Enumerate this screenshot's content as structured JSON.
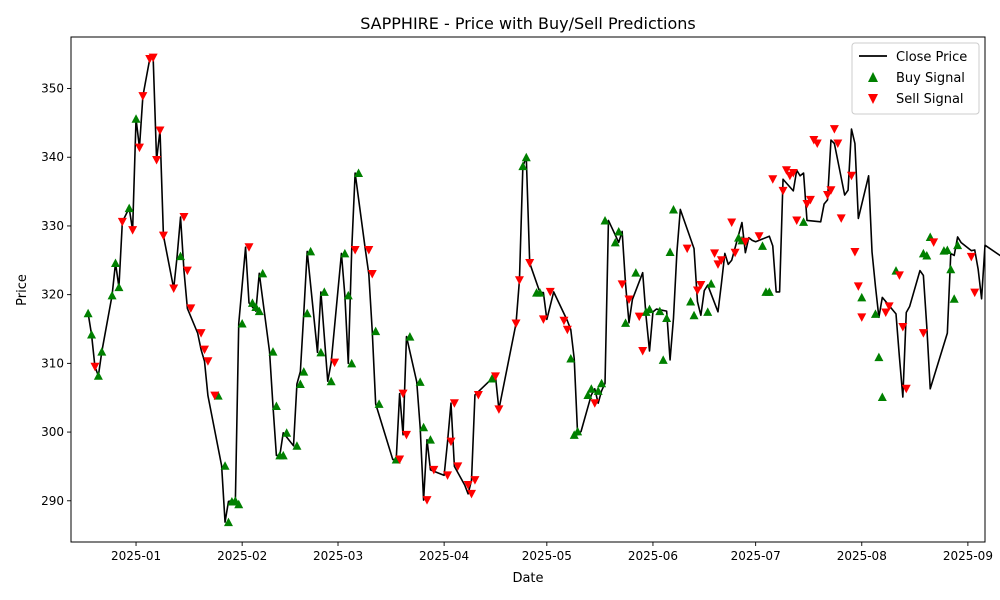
{
  "chart_data": {
    "type": "line",
    "title": "SAPPHIRE - Price with Buy/Sell Predictions",
    "xlabel": "Date",
    "ylabel": "Price",
    "x_start": "2024-12-18",
    "x_end": "2025-09-01",
    "xlim": [
      "2024-12-13",
      "2025-09-06"
    ],
    "ylim": [
      284,
      357.5
    ],
    "x_ticks": [
      "2025-01-01",
      "2025-02-01",
      "2025-03-01",
      "2025-04-01",
      "2025-05-01",
      "2025-06-01",
      "2025-07-01",
      "2025-08-01",
      "2025-09-01"
    ],
    "x_tick_labels": [
      "2025-01",
      "2025-02",
      "2025-03",
      "2025-04",
      "2025-05",
      "2025-06",
      "2025-07",
      "2025-08",
      "2025-09"
    ],
    "y_ticks": [
      290,
      300,
      310,
      320,
      330,
      340,
      350
    ],
    "y_tick_labels": [
      "290",
      "300",
      "310",
      "320",
      "330",
      "340",
      "350"
    ],
    "grid": false,
    "legend_position": "upper right",
    "series": [
      {
        "name": "Close Price",
        "type": "line",
        "color": "#000000",
        "values": [
          317.3,
          314.2,
          309.5,
          308.2,
          311.7,
          null,
          null,
          319.9,
          324.6,
          321.1,
          330.6,
          null,
          332.6,
          329.4,
          345.6,
          341.4,
          348.9,
          null,
          354.3,
          354.5,
          339.6,
          343.9,
          328.6,
          null,
          null,
          320.9,
          325.6,
          331.3,
          323.5,
          318.0,
          null,
          null,
          314.4,
          312.0,
          310.3,
          305.3,
          null,
          null,
          null,
          295.1,
          286.9,
          289.9,
          290.0,
          289.5,
          315.8,
          null,
          326.9,
          318.8,
          318.2,
          317.6,
          323.1,
          null,
          null,
          311.7,
          303.8,
          296.6,
          296.6,
          299.9,
          null,
          null,
          298.0,
          307.0,
          308.8,
          317.3,
          326.3,
          null,
          null,
          311.6,
          320.4,
          null,
          307.4,
          310.1,
          null,
          null,
          326.0,
          319.9,
          310.0,
          326.5,
          337.7,
          null,
          null,
          326.5,
          323.0,
          314.7,
          304.1,
          null,
          null,
          null,
          null,
          296.0,
          296.0,
          305.6,
          299.6,
          313.9,
          null,
          null,
          307.3,
          300.7,
          290.1,
          298.9,
          294.5,
          null,
          null,
          null,
          293.7,
          298.6,
          304.2,
          295.0,
          null,
          null,
          292.3,
          291.0,
          293.0,
          305.4,
          null,
          null,
          null,
          null,
          307.8,
          308.1,
          303.3,
          null,
          null,
          null,
          null,
          315.8,
          322.1,
          338.7,
          340.0,
          324.6,
          null,
          null,
          320.3,
          320.3,
          316.4,
          null,
          320.4,
          null,
          null,
          null,
          316.2,
          314.9,
          310.7,
          299.6,
          300.1,
          null,
          null,
          305.4,
          306.3,
          304.2,
          306.0,
          307.1,
          330.8,
          null,
          null,
          327.6,
          329.2,
          321.5,
          315.9,
          319.3,
          null,
          null,
          323.2,
          316.8,
          311.8,
          317.5,
          317.9,
          null,
          null,
          317.6,
          310.5,
          316.6,
          326.2,
          332.4,
          null,
          null,
          null,
          326.7,
          319.0,
          317.0,
          320.6,
          321.4,
          null,
          null,
          317.5,
          321.6,
          326.0,
          324.4,
          325.0,
          null,
          null,
          330.5,
          326.1,
          328.3,
          327.9,
          327.7,
          null,
          null,
          null,
          328.5,
          327.1,
          320.4,
          320.4,
          336.8,
          null,
          null,
          335.1,
          338.1,
          337.3,
          337.7,
          330.8,
          null,
          null,
          null,
          330.6,
          333.2,
          333.8,
          342.5,
          342.0,
          null,
          null,
          334.5,
          335.2,
          344.1,
          342.0,
          331.1,
          null,
          null,
          337.3,
          326.2,
          321.2,
          316.7,
          319.6,
          null,
          null,
          null,
          317.2,
          310.9,
          305.1,
          317.4,
          318.3,
          null,
          null,
          323.5,
          322.8,
          315.3,
          306.3,
          null,
          null,
          null,
          null,
          314.4,
          326.0,
          325.7,
          328.4,
          327.6,
          null,
          null,
          326.4,
          326.5,
          323.7,
          319.4,
          327.2,
          null,
          null,
          null,
          null,
          325.5,
          320.3
        ]
      },
      {
        "name": "Buy Signal",
        "type": "scatter",
        "marker": "triangle-up",
        "color": "#008000",
        "points": [
          [
            "2024-12-18",
            317.3
          ],
          [
            "2024-12-19",
            314.2
          ],
          [
            "2024-12-21",
            308.2
          ],
          [
            "2024-12-22",
            311.7
          ],
          [
            "2024-12-25",
            319.9
          ],
          [
            "2024-12-26",
            324.6
          ],
          [
            "2024-12-27",
            321.1
          ],
          [
            "2024-12-30",
            332.6
          ],
          [
            "2025-01-01",
            345.6
          ],
          [
            "2025-01-14",
            325.6
          ],
          [
            "2025-01-25",
            305.3
          ],
          [
            "2025-01-27",
            295.1
          ],
          [
            "2025-01-28",
            286.9
          ],
          [
            "2025-01-29",
            289.9
          ],
          [
            "2025-01-30",
            290.0
          ],
          [
            "2025-01-31",
            289.5
          ],
          [
            "2025-02-01",
            315.8
          ],
          [
            "2025-02-04",
            318.8
          ],
          [
            "2025-02-05",
            318.2
          ],
          [
            "2025-02-06",
            317.6
          ],
          [
            "2025-02-07",
            323.1
          ],
          [
            "2025-02-10",
            311.7
          ],
          [
            "2025-02-11",
            303.8
          ],
          [
            "2025-02-12",
            296.6
          ],
          [
            "2025-02-13",
            296.6
          ],
          [
            "2025-02-14",
            299.9
          ],
          [
            "2025-02-17",
            298.0
          ],
          [
            "2025-02-18",
            307.0
          ],
          [
            "2025-02-19",
            308.8
          ],
          [
            "2025-02-20",
            317.3
          ],
          [
            "2025-02-21",
            326.3
          ],
          [
            "2025-02-24",
            311.6
          ],
          [
            "2025-02-25",
            320.4
          ],
          [
            "2025-02-27",
            307.4
          ],
          [
            "2025-03-03",
            326.0
          ],
          [
            "2025-03-04",
            319.9
          ],
          [
            "2025-03-05",
            310.0
          ],
          [
            "2025-03-07",
            337.7
          ],
          [
            "2025-03-12",
            314.7
          ],
          [
            "2025-03-13",
            304.1
          ],
          [
            "2025-03-18",
            296.0
          ],
          [
            "2025-03-22",
            313.9
          ],
          [
            "2025-03-25",
            307.3
          ],
          [
            "2025-03-26",
            300.7
          ],
          [
            "2025-03-28",
            298.9
          ],
          [
            "2025-04-15",
            307.8
          ],
          [
            "2025-04-24",
            338.7
          ],
          [
            "2025-04-25",
            340.0
          ],
          [
            "2025-04-28",
            320.3
          ],
          [
            "2025-04-29",
            320.3
          ],
          [
            "2025-05-08",
            310.7
          ],
          [
            "2025-05-09",
            299.6
          ],
          [
            "2025-05-10",
            300.1
          ],
          [
            "2025-05-13",
            305.4
          ],
          [
            "2025-05-14",
            306.3
          ],
          [
            "2025-05-16",
            306.0
          ],
          [
            "2025-05-17",
            307.1
          ],
          [
            "2025-05-18",
            330.8
          ],
          [
            "2025-05-21",
            327.6
          ],
          [
            "2025-05-22",
            329.2
          ],
          [
            "2025-05-24",
            315.9
          ],
          [
            "2025-05-27",
            323.2
          ],
          [
            "2025-05-30",
            317.5
          ],
          [
            "2025-05-31",
            317.9
          ],
          [
            "2025-06-03",
            317.6
          ],
          [
            "2025-06-04",
            310.5
          ],
          [
            "2025-06-05",
            316.6
          ],
          [
            "2025-06-06",
            326.2
          ],
          [
            "2025-06-07",
            332.4
          ],
          [
            "2025-06-12",
            319.0
          ],
          [
            "2025-06-13",
            317.0
          ],
          [
            "2025-06-17",
            317.5
          ],
          [
            "2025-06-18",
            321.6
          ],
          [
            "2025-06-26",
            328.3
          ],
          [
            "2025-06-27",
            327.9
          ],
          [
            "2025-07-03",
            327.1
          ],
          [
            "2025-07-04",
            320.4
          ],
          [
            "2025-07-05",
            320.4
          ],
          [
            "2025-07-15",
            330.6
          ],
          [
            "2025-08-01",
            319.6
          ],
          [
            "2025-08-05",
            317.2
          ],
          [
            "2025-08-06",
            310.9
          ],
          [
            "2025-08-07",
            305.1
          ],
          [
            "2025-08-11",
            323.5
          ],
          [
            "2025-08-19",
            326.0
          ],
          [
            "2025-08-20",
            325.7
          ],
          [
            "2025-08-21",
            328.4
          ],
          [
            "2025-08-25",
            326.4
          ],
          [
            "2025-08-26",
            326.5
          ],
          [
            "2025-08-27",
            323.7
          ],
          [
            "2025-08-28",
            319.4
          ],
          [
            "2025-08-29",
            327.2
          ]
        ]
      },
      {
        "name": "Sell Signal",
        "type": "scatter",
        "marker": "triangle-down",
        "color": "#ff0000",
        "points": [
          [
            "2024-12-20",
            309.5
          ],
          [
            "2024-12-28",
            330.6
          ],
          [
            "2024-12-31",
            329.4
          ],
          [
            "2025-01-02",
            341.4
          ],
          [
            "2025-01-03",
            348.9
          ],
          [
            "2025-01-05",
            354.3
          ],
          [
            "2025-01-06",
            354.5
          ],
          [
            "2025-01-07",
            339.6
          ],
          [
            "2025-01-08",
            343.9
          ],
          [
            "2025-01-09",
            328.6
          ],
          [
            "2025-01-12",
            320.9
          ],
          [
            "2025-01-15",
            331.3
          ],
          [
            "2025-01-16",
            323.5
          ],
          [
            "2025-01-17",
            318.0
          ],
          [
            "2025-01-20",
            314.4
          ],
          [
            "2025-01-21",
            312.0
          ],
          [
            "2025-01-22",
            310.3
          ],
          [
            "2025-01-24",
            305.3
          ],
          [
            "2025-02-03",
            326.9
          ],
          [
            "2025-02-28",
            310.1
          ],
          [
            "2025-03-06",
            326.5
          ],
          [
            "2025-03-10",
            326.5
          ],
          [
            "2025-03-11",
            323.0
          ],
          [
            "2025-03-19",
            296.0
          ],
          [
            "2025-03-20",
            305.6
          ],
          [
            "2025-03-21",
            299.6
          ],
          [
            "2025-03-27",
            290.1
          ],
          [
            "2025-03-29",
            294.5
          ],
          [
            "2025-04-02",
            293.7
          ],
          [
            "2025-04-03",
            298.6
          ],
          [
            "2025-04-04",
            304.2
          ],
          [
            "2025-04-05",
            295.0
          ],
          [
            "2025-04-08",
            292.3
          ],
          [
            "2025-04-09",
            291.0
          ],
          [
            "2025-04-10",
            293.0
          ],
          [
            "2025-04-11",
            305.4
          ],
          [
            "2025-04-16",
            308.1
          ],
          [
            "2025-04-17",
            303.3
          ],
          [
            "2025-04-22",
            315.8
          ],
          [
            "2025-04-23",
            322.1
          ],
          [
            "2025-04-26",
            324.6
          ],
          [
            "2025-04-30",
            316.4
          ],
          [
            "2025-05-02",
            320.4
          ],
          [
            "2025-05-06",
            316.2
          ],
          [
            "2025-05-07",
            314.9
          ],
          [
            "2025-05-15",
            304.2
          ],
          [
            "2025-05-23",
            321.5
          ],
          [
            "2025-05-25",
            319.3
          ],
          [
            "2025-05-28",
            316.8
          ],
          [
            "2025-05-29",
            311.8
          ],
          [
            "2025-06-11",
            326.7
          ],
          [
            "2025-06-14",
            320.6
          ],
          [
            "2025-06-15",
            321.4
          ],
          [
            "2025-06-19",
            326.0
          ],
          [
            "2025-06-20",
            324.4
          ],
          [
            "2025-06-21",
            325.0
          ],
          [
            "2025-06-24",
            330.5
          ],
          [
            "2025-06-25",
            326.1
          ],
          [
            "2025-06-28",
            327.7
          ],
          [
            "2025-07-02",
            328.5
          ],
          [
            "2025-07-06",
            336.8
          ],
          [
            "2025-07-09",
            335.1
          ],
          [
            "2025-07-10",
            338.1
          ],
          [
            "2025-07-11",
            337.3
          ],
          [
            "2025-07-12",
            337.7
          ],
          [
            "2025-07-13",
            330.8
          ],
          [
            "2025-07-16",
            333.2
          ],
          [
            "2025-07-17",
            333.8
          ],
          [
            "2025-07-18",
            342.5
          ],
          [
            "2025-07-19",
            342.0
          ],
          [
            "2025-07-22",
            334.5
          ],
          [
            "2025-07-23",
            335.2
          ],
          [
            "2025-07-24",
            344.1
          ],
          [
            "2025-07-25",
            342.0
          ],
          [
            "2025-07-26",
            331.1
          ],
          [
            "2025-07-29",
            337.3
          ],
          [
            "2025-07-30",
            326.2
          ],
          [
            "2025-07-31",
            321.2
          ],
          [
            "2025-08-01",
            316.7
          ],
          [
            "2025-08-08",
            317.4
          ],
          [
            "2025-08-09",
            318.3
          ],
          [
            "2025-08-12",
            322.8
          ],
          [
            "2025-08-13",
            315.3
          ],
          [
            "2025-08-14",
            306.3
          ],
          [
            "2025-08-19",
            314.4
          ],
          [
            "2025-08-22",
            327.6
          ],
          [
            "2025-09-02",
            325.5
          ],
          [
            "2025-09-03",
            320.3
          ]
        ]
      }
    ]
  }
}
